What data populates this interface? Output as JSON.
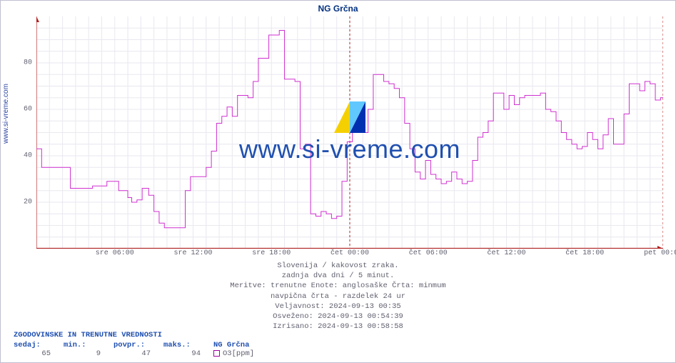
{
  "title": "NG Grčna",
  "ylabel": "www.si-vreme.com",
  "watermark_text": "www.si-vreme.com",
  "chart": {
    "type": "line-step",
    "line_color": "#d030d0",
    "line_width": 1,
    "background_color": "#ffffff",
    "grid_color": "#e8e8f0",
    "axis_color": "#b02020",
    "divider_color": "#b02020",
    "xlim": [
      0,
      48
    ],
    "ylim": [
      0,
      100
    ],
    "yticks": [
      20,
      40,
      60,
      80
    ],
    "xticks": [
      {
        "pos": 6,
        "label": "sre 06:00"
      },
      {
        "pos": 12,
        "label": "sre 12:00"
      },
      {
        "pos": 18,
        "label": "sre 18:00"
      },
      {
        "pos": 24,
        "label": "čet 00:00"
      },
      {
        "pos": 30,
        "label": "čet 06:00"
      },
      {
        "pos": 36,
        "label": "čet 12:00"
      },
      {
        "pos": 42,
        "label": "čet 18:00"
      },
      {
        "pos": 48,
        "label": "pet 00:00"
      }
    ],
    "day_dividers": [
      24,
      48
    ],
    "series": [
      {
        "x": 0.0,
        "y": 43
      },
      {
        "x": 0.4,
        "y": 35
      },
      {
        "x": 2.2,
        "y": 35
      },
      {
        "x": 2.6,
        "y": 26
      },
      {
        "x": 4.0,
        "y": 26
      },
      {
        "x": 4.3,
        "y": 27
      },
      {
        "x": 5.4,
        "y": 29
      },
      {
        "x": 6.0,
        "y": 29
      },
      {
        "x": 6.3,
        "y": 25
      },
      {
        "x": 7.0,
        "y": 22
      },
      {
        "x": 7.3,
        "y": 20
      },
      {
        "x": 7.7,
        "y": 21
      },
      {
        "x": 8.1,
        "y": 26
      },
      {
        "x": 8.6,
        "y": 23
      },
      {
        "x": 9.0,
        "y": 16
      },
      {
        "x": 9.4,
        "y": 11
      },
      {
        "x": 9.8,
        "y": 9
      },
      {
        "x": 10.2,
        "y": 9
      },
      {
        "x": 10.6,
        "y": 9
      },
      {
        "x": 11.0,
        "y": 9
      },
      {
        "x": 11.4,
        "y": 25
      },
      {
        "x": 11.8,
        "y": 31
      },
      {
        "x": 12.2,
        "y": 31
      },
      {
        "x": 12.6,
        "y": 31
      },
      {
        "x": 13.0,
        "y": 35
      },
      {
        "x": 13.4,
        "y": 42
      },
      {
        "x": 13.8,
        "y": 54
      },
      {
        "x": 14.2,
        "y": 57
      },
      {
        "x": 14.6,
        "y": 61
      },
      {
        "x": 15.0,
        "y": 57
      },
      {
        "x": 15.4,
        "y": 66
      },
      {
        "x": 15.8,
        "y": 66
      },
      {
        "x": 16.2,
        "y": 65
      },
      {
        "x": 16.6,
        "y": 72
      },
      {
        "x": 17.0,
        "y": 82
      },
      {
        "x": 17.4,
        "y": 82
      },
      {
        "x": 17.8,
        "y": 92
      },
      {
        "x": 18.2,
        "y": 92
      },
      {
        "x": 18.6,
        "y": 94
      },
      {
        "x": 19.0,
        "y": 73
      },
      {
        "x": 19.4,
        "y": 73
      },
      {
        "x": 19.8,
        "y": 72
      },
      {
        "x": 20.2,
        "y": 43
      },
      {
        "x": 20.6,
        "y": 45
      },
      {
        "x": 21.0,
        "y": 15
      },
      {
        "x": 21.4,
        "y": 14
      },
      {
        "x": 21.8,
        "y": 16
      },
      {
        "x": 22.2,
        "y": 15
      },
      {
        "x": 22.6,
        "y": 13
      },
      {
        "x": 23.0,
        "y": 14
      },
      {
        "x": 23.4,
        "y": 29
      },
      {
        "x": 23.8,
        "y": 46
      },
      {
        "x": 24.2,
        "y": 51
      },
      {
        "x": 24.6,
        "y": 51
      },
      {
        "x": 25.0,
        "y": 50
      },
      {
        "x": 25.4,
        "y": 60
      },
      {
        "x": 25.8,
        "y": 75
      },
      {
        "x": 26.2,
        "y": 75
      },
      {
        "x": 26.6,
        "y": 72
      },
      {
        "x": 27.0,
        "y": 71
      },
      {
        "x": 27.4,
        "y": 69
      },
      {
        "x": 27.8,
        "y": 65
      },
      {
        "x": 28.2,
        "y": 54
      },
      {
        "x": 28.6,
        "y": 43
      },
      {
        "x": 29.0,
        "y": 33
      },
      {
        "x": 29.4,
        "y": 30
      },
      {
        "x": 29.8,
        "y": 38
      },
      {
        "x": 30.2,
        "y": 32
      },
      {
        "x": 30.6,
        "y": 30
      },
      {
        "x": 31.0,
        "y": 28
      },
      {
        "x": 31.4,
        "y": 29
      },
      {
        "x": 31.8,
        "y": 33
      },
      {
        "x": 32.2,
        "y": 30
      },
      {
        "x": 32.6,
        "y": 28
      },
      {
        "x": 33.0,
        "y": 29
      },
      {
        "x": 33.4,
        "y": 38
      },
      {
        "x": 33.8,
        "y": 48
      },
      {
        "x": 34.2,
        "y": 50
      },
      {
        "x": 34.6,
        "y": 55
      },
      {
        "x": 35.0,
        "y": 67
      },
      {
        "x": 35.4,
        "y": 67
      },
      {
        "x": 35.8,
        "y": 60
      },
      {
        "x": 36.2,
        "y": 66
      },
      {
        "x": 36.6,
        "y": 62
      },
      {
        "x": 37.0,
        "y": 65
      },
      {
        "x": 37.4,
        "y": 66
      },
      {
        "x": 37.8,
        "y": 66
      },
      {
        "x": 38.2,
        "y": 66
      },
      {
        "x": 38.6,
        "y": 67
      },
      {
        "x": 39.0,
        "y": 60
      },
      {
        "x": 39.4,
        "y": 59
      },
      {
        "x": 39.8,
        "y": 55
      },
      {
        "x": 40.2,
        "y": 50
      },
      {
        "x": 40.6,
        "y": 47
      },
      {
        "x": 41.0,
        "y": 45
      },
      {
        "x": 41.4,
        "y": 43
      },
      {
        "x": 41.8,
        "y": 44
      },
      {
        "x": 42.2,
        "y": 50
      },
      {
        "x": 42.6,
        "y": 47
      },
      {
        "x": 43.0,
        "y": 43
      },
      {
        "x": 43.4,
        "y": 49
      },
      {
        "x": 43.8,
        "y": 56
      },
      {
        "x": 44.2,
        "y": 45
      },
      {
        "x": 44.6,
        "y": 45
      },
      {
        "x": 45.0,
        "y": 58
      },
      {
        "x": 45.4,
        "y": 71
      },
      {
        "x": 45.8,
        "y": 71
      },
      {
        "x": 46.2,
        "y": 68
      },
      {
        "x": 46.6,
        "y": 72
      },
      {
        "x": 47.0,
        "y": 71
      },
      {
        "x": 47.4,
        "y": 64
      },
      {
        "x": 47.8,
        "y": 65
      },
      {
        "x": 48.0,
        "y": 65
      }
    ]
  },
  "meta_lines": [
    "Slovenija / kakovost zraka.",
    "zadnja dva dni / 5 minut.",
    "Meritve: trenutne  Enote: anglosaške  Črta: minmum",
    "navpična črta - razdelek 24 ur",
    "Veljavnost: 2024-09-13 00:35",
    "Osveženo: 2024-09-13 00:54:39",
    "Izrisano: 2024-09-13 00:58:58"
  ],
  "hist": {
    "title": "ZGODOVINSKE IN TRENUTNE VREDNOSTI",
    "headers": [
      "sedaj:",
      "min.:",
      "povpr.:",
      "maks.:"
    ],
    "values": [
      "65",
      "9",
      "47",
      "94"
    ],
    "station_label": "NG Grčna",
    "legend_label": "O3[ppm]",
    "legend_color": "#a000a0"
  }
}
